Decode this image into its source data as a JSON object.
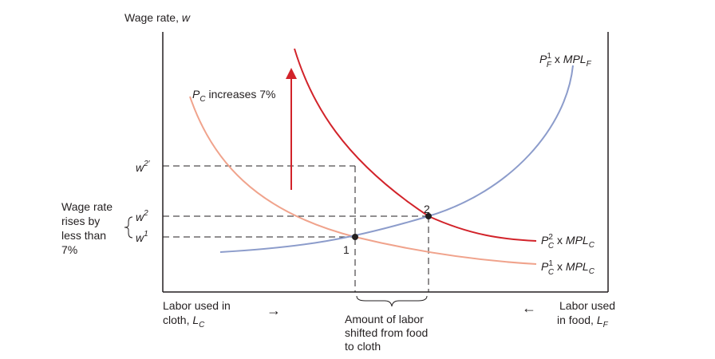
{
  "y_axis": {
    "label_prefix": "Wage rate, ",
    "label_var": "w"
  },
  "x_axis": {
    "left_line1": "Labor used in",
    "left_line2_prefix": "cloth, ",
    "left_line2_var": "L",
    "left_line2_sub": "C",
    "left_arrow": "→",
    "right_line1": "Labor used",
    "right_line2_prefix": "in food, ",
    "right_line2_var": "L",
    "right_line2_sub": "F",
    "right_arrow": "←"
  },
  "price_change": {
    "var": "P",
    "sub": "C",
    "text": " increases 7%"
  },
  "curves": {
    "food": {
      "p": "P",
      "sup": "1",
      "sub": "F",
      "mid": " x ",
      "mpl": "MPL",
      "mpl_sub": "F",
      "color": "#8c9ccb"
    },
    "cloth_new": {
      "p": "P",
      "sup": "2",
      "sub": "C",
      "mid": " x ",
      "mpl": "MPL",
      "mpl_sub": "C",
      "color": "#d2232a"
    },
    "cloth_old": {
      "p": "P",
      "sup": "1",
      "sub": "C",
      "mid": " x ",
      "mpl": "MPL",
      "mpl_sub": "C",
      "color": "#f0a38c"
    }
  },
  "wages": {
    "w2prime": {
      "var": "w",
      "sup": "2′"
    },
    "w2": {
      "var": "w",
      "sup": "2"
    },
    "w1": {
      "var": "w",
      "sup": "1"
    }
  },
  "points": {
    "p1": "1",
    "p2": "2"
  },
  "wage_note": [
    "Wage rate",
    "rises by",
    "less than",
    "7%"
  ],
  "shift_note": [
    "Amount of labor",
    "shifted from food",
    "to cloth"
  ],
  "colors": {
    "axis": "#231f20",
    "dash": "#231f20",
    "arrow": "#d2232a"
  }
}
